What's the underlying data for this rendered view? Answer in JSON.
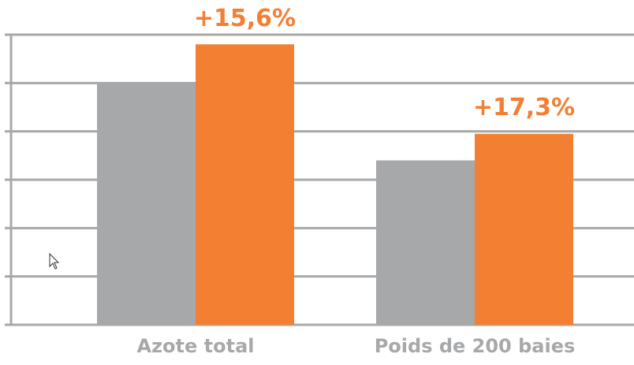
{
  "chart_data": {
    "type": "bar",
    "categories": [
      "Azote total",
      "Poids de 200 baies"
    ],
    "series": [
      {
        "color": "#a7a8aa",
        "values": [
          5.0,
          3.4
        ]
      },
      {
        "color": "#f37f33",
        "values": [
          5.8,
          3.95
        ]
      }
    ],
    "value_labels": [
      "+15,6%",
      "+17,3%"
    ],
    "ylim": [
      0,
      6
    ],
    "yticks": [
      0,
      1,
      2,
      3,
      4,
      5,
      6
    ],
    "grid": true
  }
}
